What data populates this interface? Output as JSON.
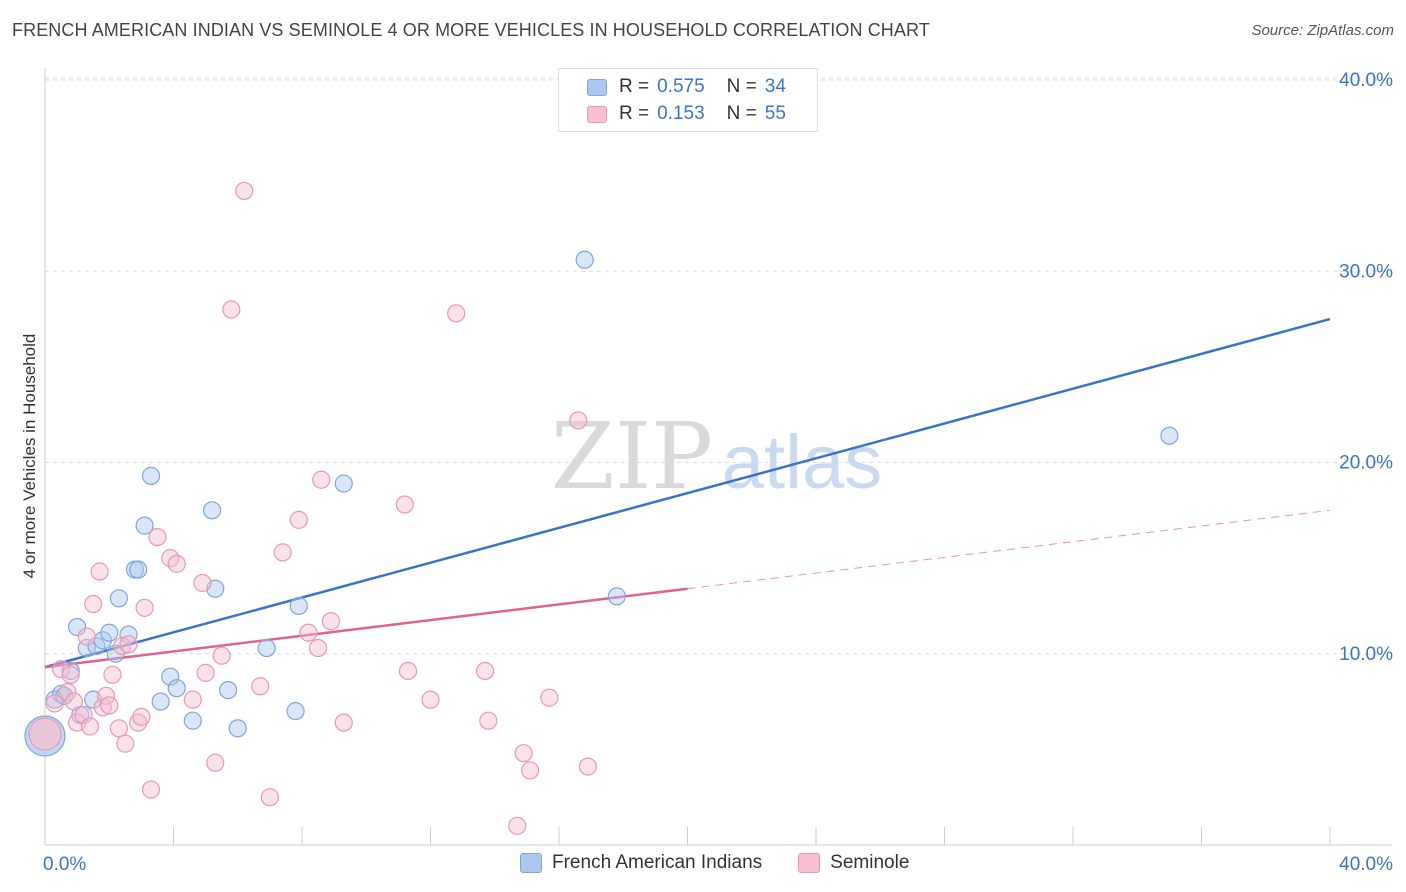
{
  "title": "FRENCH AMERICAN INDIAN VS SEMINOLE 4 OR MORE VEHICLES IN HOUSEHOLD CORRELATION CHART",
  "source": "Source: ZipAtlas.com",
  "watermark": {
    "zip": "ZIP",
    "atlas": "atlas"
  },
  "legend": {
    "rows": [
      {
        "r_label": "R =",
        "r_value": "0.575",
        "n_label": "N =",
        "n_value": "34",
        "fill": "#aac8f0",
        "stroke": "#7ea6dd"
      },
      {
        "r_label": "R =",
        "r_value": "0.153",
        "n_label": "N =",
        "n_value": "55",
        "fill": "#f7bfd0",
        "stroke": "#e898b2"
      }
    ]
  },
  "bottom_legend": [
    {
      "label": "French American Indians",
      "fill": "#aac8f0",
      "stroke": "#7ea6dd"
    },
    {
      "label": "Seminole",
      "fill": "#f7bfd0",
      "stroke": "#e898b2"
    }
  ],
  "chart_data": {
    "type": "scatter",
    "title": "FRENCH AMERICAN INDIAN VS SEMINOLE 4 OR MORE VEHICLES IN HOUSEHOLD CORRELATION CHART",
    "xlabel": "",
    "ylabel": "4 or more Vehicles in Household",
    "xlim": [
      0,
      40
    ],
    "ylim": [
      0,
      40
    ],
    "x_tick_labels": {
      "left": "0.0%",
      "right": "40.0%"
    },
    "y_ticks": [
      {
        "value": 10,
        "label": "10.0%"
      },
      {
        "value": 20,
        "label": "20.0%"
      },
      {
        "value": 30,
        "label": "30.0%"
      },
      {
        "value": 40,
        "label": "40.0%"
      }
    ],
    "grid": "horizontal-dashed",
    "series": [
      {
        "name": "French American Indians",
        "color": "#3b74c7",
        "fill": "#aac8f0",
        "stroke": "#7ea6dd",
        "trend": {
          "x0": 0,
          "y0": 9.3,
          "x1": 40,
          "y1": 27.5,
          "dashed_from": null
        },
        "points": [
          [
            0.0,
            5.7,
            3
          ],
          [
            0.3,
            7.6,
            1
          ],
          [
            0.5,
            7.9,
            1
          ],
          [
            0.6,
            7.8,
            1
          ],
          [
            0.8,
            9.1,
            1
          ],
          [
            1.0,
            11.4,
            1
          ],
          [
            1.1,
            6.8,
            1
          ],
          [
            1.3,
            10.3,
            1
          ],
          [
            1.5,
            7.6,
            1
          ],
          [
            1.6,
            10.4,
            1
          ],
          [
            1.8,
            10.7,
            1
          ],
          [
            2.0,
            11.1,
            1
          ],
          [
            2.2,
            10.0,
            1
          ],
          [
            2.3,
            12.9,
            1
          ],
          [
            2.6,
            11.0,
            1
          ],
          [
            2.8,
            14.4,
            1
          ],
          [
            2.9,
            14.4,
            1
          ],
          [
            3.1,
            16.7,
            1
          ],
          [
            3.3,
            19.3,
            1
          ],
          [
            3.6,
            7.5,
            1
          ],
          [
            3.9,
            8.8,
            1
          ],
          [
            4.1,
            8.2,
            1
          ],
          [
            4.6,
            6.5,
            1
          ],
          [
            5.2,
            17.5,
            1
          ],
          [
            5.3,
            13.4,
            1
          ],
          [
            5.7,
            8.1,
            1
          ],
          [
            6.0,
            6.1,
            1
          ],
          [
            6.9,
            10.3,
            1
          ],
          [
            7.8,
            7.0,
            1
          ],
          [
            7.9,
            12.5,
            1
          ],
          [
            9.3,
            18.9,
            1
          ],
          [
            16.8,
            30.6,
            1
          ],
          [
            17.8,
            13.0,
            1
          ],
          [
            35.0,
            21.4,
            1
          ]
        ]
      },
      {
        "name": "Seminole",
        "color": "#e0628e",
        "fill": "#f7bfd0",
        "stroke": "#e898b2",
        "trend": {
          "x0": 0,
          "y0": 9.3,
          "x1": 40,
          "y1": 17.5,
          "dashed_from": 20
        },
        "points": [
          [
            0.0,
            5.8,
            2
          ],
          [
            0.3,
            7.4,
            1
          ],
          [
            0.5,
            9.2,
            1
          ],
          [
            0.7,
            8.0,
            1
          ],
          [
            0.8,
            8.9,
            1
          ],
          [
            0.9,
            7.5,
            1
          ],
          [
            1.0,
            6.4,
            1
          ],
          [
            1.2,
            6.8,
            1
          ],
          [
            1.3,
            10.9,
            1
          ],
          [
            1.4,
            6.2,
            1
          ],
          [
            1.5,
            12.6,
            1
          ],
          [
            1.7,
            14.3,
            1
          ],
          [
            1.8,
            7.2,
            1
          ],
          [
            1.9,
            7.8,
            1
          ],
          [
            2.0,
            7.3,
            1
          ],
          [
            2.1,
            8.9,
            1
          ],
          [
            2.3,
            6.1,
            1
          ],
          [
            2.4,
            10.4,
            1
          ],
          [
            2.5,
            5.3,
            1
          ],
          [
            2.6,
            10.5,
            1
          ],
          [
            2.9,
            6.4,
            1
          ],
          [
            3.0,
            6.7,
            1
          ],
          [
            3.1,
            12.4,
            1
          ],
          [
            3.3,
            2.9,
            1
          ],
          [
            3.5,
            16.1,
            1
          ],
          [
            3.9,
            15.0,
            1
          ],
          [
            4.1,
            14.7,
            1
          ],
          [
            4.6,
            7.6,
            1
          ],
          [
            4.9,
            13.7,
            1
          ],
          [
            5.0,
            9.0,
            1
          ],
          [
            5.3,
            4.3,
            1
          ],
          [
            5.5,
            9.9,
            1
          ],
          [
            5.8,
            28.0,
            1
          ],
          [
            6.2,
            34.2,
            1
          ],
          [
            6.7,
            8.3,
            1
          ],
          [
            7.0,
            2.5,
            1
          ],
          [
            7.4,
            15.3,
            1
          ],
          [
            7.9,
            17.0,
            1
          ],
          [
            8.2,
            11.1,
            1
          ],
          [
            8.5,
            10.3,
            1
          ],
          [
            8.6,
            19.1,
            1
          ],
          [
            8.9,
            11.7,
            1
          ],
          [
            9.3,
            6.4,
            1
          ],
          [
            11.2,
            17.8,
            1
          ],
          [
            11.3,
            9.1,
            1
          ],
          [
            12.0,
            7.6,
            1
          ],
          [
            12.8,
            27.8,
            1
          ],
          [
            13.7,
            9.1,
            1
          ],
          [
            13.8,
            6.5,
            1
          ],
          [
            14.7,
            1.0,
            1
          ],
          [
            14.9,
            4.8,
            1
          ],
          [
            15.1,
            3.9,
            1
          ],
          [
            15.7,
            7.7,
            1
          ],
          [
            16.6,
            22.2,
            1
          ],
          [
            16.9,
            4.1,
            1
          ]
        ]
      }
    ]
  }
}
